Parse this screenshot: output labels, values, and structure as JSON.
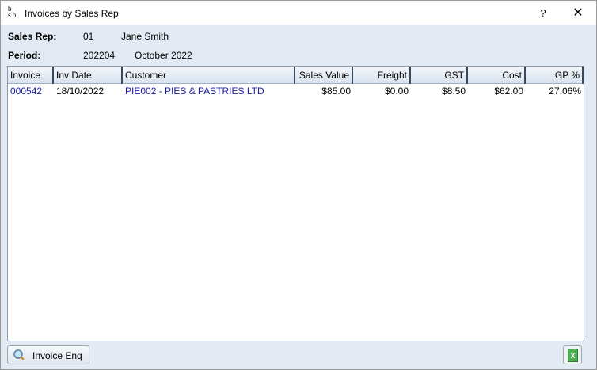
{
  "window": {
    "title": "Invoices by Sales Rep",
    "help": "?",
    "close": "✕",
    "logo": "bsb"
  },
  "header": {
    "sales_rep_label": "Sales Rep:",
    "sales_rep_code": "01",
    "sales_rep_name": "Jane Smith",
    "period_label": "Period:",
    "period_code": "202204",
    "period_name": "October 2022"
  },
  "table": {
    "columns": [
      "Invoice",
      "Inv Date",
      "Customer",
      "Sales Value",
      "Freight",
      "GST",
      "Cost",
      "GP %"
    ],
    "rows": [
      [
        "000542",
        "18/10/2022",
        "PIE002 - PIES & PASTRIES LTD",
        "$85.00",
        "$0.00",
        "$8.50",
        "$62.00",
        "27.06%"
      ]
    ]
  },
  "footer": {
    "invoice_enq": "Invoice Enq",
    "excel_icon": "excel-export-icon",
    "search_icon": "magnifier-icon"
  }
}
